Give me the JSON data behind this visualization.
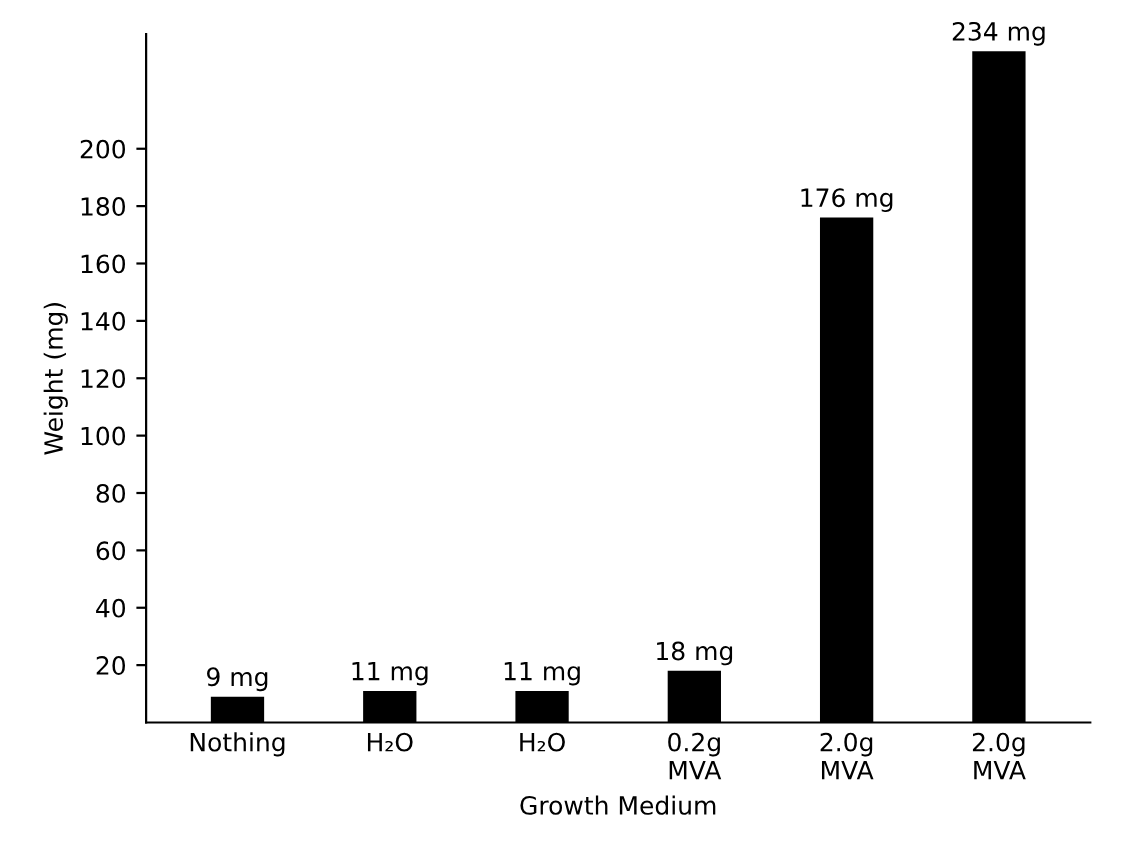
{
  "chart_data": {
    "type": "bar",
    "xlabel": "Growth Medium",
    "ylabel": "Weight (mg)",
    "categories": [
      "Nothing",
      "H₂O",
      "H₂O",
      "0.2g\nMVA",
      "2.0g\nMVA",
      "2.0g\nMVA"
    ],
    "values": [
      9,
      11,
      11,
      18,
      176,
      234
    ],
    "value_labels": [
      "9 mg",
      "11 mg",
      "11 mg",
      "18 mg",
      "176 mg",
      "234 mg"
    ],
    "color": "#000000",
    "ylim": [
      0,
      240
    ],
    "yticks": [
      20,
      40,
      60,
      80,
      100,
      120,
      140,
      160,
      180,
      200
    ],
    "grid": false
  }
}
